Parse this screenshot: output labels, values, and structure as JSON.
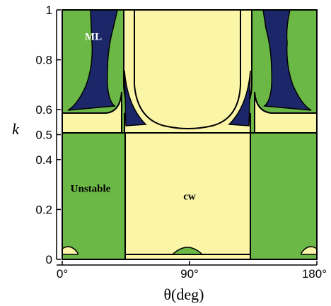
{
  "chart_data": {
    "type": "heatmap",
    "title": "",
    "xlabel": "θ(deg)",
    "ylabel": "k",
    "xlim": [
      0,
      180
    ],
    "ylim": [
      0,
      1
    ],
    "x_ticks": [
      {
        "value": 0,
        "label": "0°"
      },
      {
        "value": 90,
        "label": "90°"
      },
      {
        "value": 180,
        "label": "180°"
      }
    ],
    "y_ticks": [
      {
        "value": 0,
        "label": "0"
      },
      {
        "value": 0.2,
        "label": "0.2"
      },
      {
        "value": 0.4,
        "label": "0.4"
      },
      {
        "value": 0.5,
        "label": "0.5"
      },
      {
        "value": 0.6,
        "label": "0.6"
      },
      {
        "value": 0.8,
        "label": "0.8"
      },
      {
        "value": 1,
        "label": "1"
      }
    ],
    "region_labels": [
      {
        "text": "ML",
        "x": 22,
        "y": 0.88,
        "color": "#ffffff"
      },
      {
        "text": "Unstable",
        "x": 20,
        "y": 0.27,
        "color": "#000000"
      },
      {
        "text": "cw",
        "x": 90,
        "y": 0.24,
        "color": "#000000"
      }
    ],
    "regions": {
      "Unstable": "#6cb847",
      "cw": "#fbf5a8",
      "ML": "#1c2769"
    }
  }
}
